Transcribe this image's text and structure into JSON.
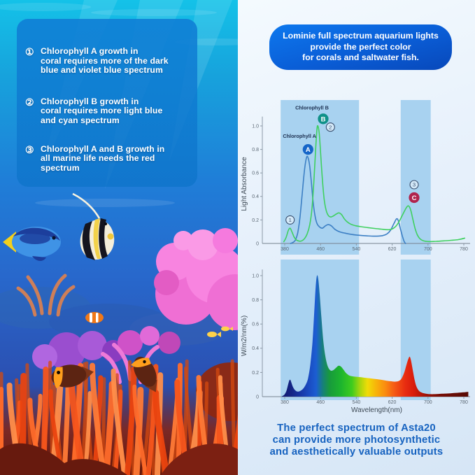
{
  "left_panel": {
    "points": [
      {
        "num": "①",
        "lines": [
          "Chlorophyll A growth in",
          "coral requires more of the dark",
          "blue and violet blue spectrum"
        ]
      },
      {
        "num": "②",
        "lines": [
          "Chlorophyll B growth in",
          "coral requires more light blue",
          "and cyan spectrum"
        ]
      },
      {
        "num": "③",
        "lines": [
          "Chlorophyll A and B growth in",
          "all marine life needs the red spectrum"
        ]
      }
    ]
  },
  "banner": {
    "lines": [
      "Lominie full spectrum aquarium lights",
      "provide the perfect color",
      "for corals and saltwater fish."
    ]
  },
  "footer": {
    "lines": [
      "The perfect spectrum of Asta20",
      "can provide more photosynthetic",
      "and aesthetically valuable outputs"
    ]
  },
  "colors": {
    "banner_blue": "#0b63d8",
    "footer_text": "#1763c0",
    "band": "#a8d2f0",
    "chl_a_line": "#3c7fc4",
    "chl_b_line": "#3fd05f",
    "badge_a": "#1565c8",
    "badge_b": "#0f9188",
    "badge_c": "#b0244e"
  },
  "chart_data": [
    {
      "type": "line",
      "title": "Chlorophyll absorbance",
      "ylabel": "Light Absorbance",
      "xlabel": "",
      "x_unit": "nm",
      "xticks": [
        380,
        460,
        540,
        620,
        700,
        780
      ],
      "ytick_labels": [
        "0",
        "0.2",
        "0.4",
        "0.6",
        "0.8",
        "1.0"
      ],
      "ylim": [
        0,
        1.08
      ],
      "xlim": [
        330,
        792
      ],
      "grid": false,
      "bands_nm": [
        [
          371,
          546
        ],
        [
          639,
          706
        ]
      ],
      "series": [
        {
          "name": "Chlorophyll A",
          "color": "#3c7fc4",
          "points": [
            [
              393,
              0
            ],
            [
              399,
              0.01
            ],
            [
              404,
              0.03
            ],
            [
              409,
              0.09
            ],
            [
              414,
              0.22
            ],
            [
              419,
              0.42
            ],
            [
              424,
              0.62
            ],
            [
              428,
              0.72
            ],
            [
              431,
              0.74
            ],
            [
              435,
              0.68
            ],
            [
              439,
              0.54
            ],
            [
              443,
              0.37
            ],
            [
              447,
              0.25
            ],
            [
              452,
              0.17
            ],
            [
              458,
              0.14
            ],
            [
              464,
              0.13
            ],
            [
              471,
              0.15
            ],
            [
              477,
              0.16
            ],
            [
              484,
              0.15
            ],
            [
              492,
              0.12
            ],
            [
              502,
              0.1
            ],
            [
              514,
              0.088
            ],
            [
              528,
              0.078
            ],
            [
              544,
              0.07
            ],
            [
              562,
              0.065
            ],
            [
              580,
              0.062
            ],
            [
              598,
              0.066
            ],
            [
              608,
              0.08
            ],
            [
              616,
              0.11
            ],
            [
              624,
              0.17
            ],
            [
              630,
              0.21
            ],
            [
              634,
              0.19
            ],
            [
              638,
              0.13
            ],
            [
              643,
              0.06
            ],
            [
              647,
              0.015
            ],
            [
              650,
              0
            ]
          ]
        },
        {
          "name": "Chlorophyll B",
          "color": "#3fd05f",
          "points": [
            [
              378,
              0.015
            ],
            [
              383,
              0.05
            ],
            [
              388,
              0.11
            ],
            [
              392,
              0.13
            ],
            [
              396,
              0.1
            ],
            [
              401,
              0.055
            ],
            [
              406,
              0.03
            ],
            [
              412,
              0.02
            ],
            [
              418,
              0.022
            ],
            [
              424,
              0.04
            ],
            [
              430,
              0.08
            ],
            [
              436,
              0.16
            ],
            [
              441,
              0.3
            ],
            [
              445,
              0.52
            ],
            [
              449,
              0.8
            ],
            [
              452,
              0.97
            ],
            [
              454,
              1.0
            ],
            [
              457,
              0.94
            ],
            [
              460,
              0.78
            ],
            [
              464,
              0.55
            ],
            [
              468,
              0.38
            ],
            [
              472,
              0.29
            ],
            [
              477,
              0.24
            ],
            [
              483,
              0.225
            ],
            [
              489,
              0.235
            ],
            [
              495,
              0.25
            ],
            [
              501,
              0.26
            ],
            [
              507,
              0.245
            ],
            [
              513,
              0.21
            ],
            [
              519,
              0.185
            ],
            [
              527,
              0.165
            ],
            [
              537,
              0.152
            ],
            [
              550,
              0.143
            ],
            [
              565,
              0.135
            ],
            [
              580,
              0.128
            ],
            [
              595,
              0.122
            ],
            [
              608,
              0.117
            ],
            [
              618,
              0.12
            ],
            [
              628,
              0.145
            ],
            [
              636,
              0.19
            ],
            [
              644,
              0.25
            ],
            [
              651,
              0.3
            ],
            [
              656,
              0.32
            ],
            [
              661,
              0.29
            ],
            [
              666,
              0.21
            ],
            [
              671,
              0.13
            ],
            [
              676,
              0.075
            ],
            [
              682,
              0.04
            ],
            [
              690,
              0.022
            ],
            [
              702,
              0.016
            ],
            [
              718,
              0.018
            ],
            [
              735,
              0.022
            ],
            [
              752,
              0.027
            ],
            [
              768,
              0.033
            ],
            [
              782,
              0.045
            ]
          ]
        }
      ],
      "annotations": {
        "series_labels": [
          {
            "text": "Chlorophyll A",
            "nm": 413,
            "val": 0.9
          },
          {
            "text": "Chlorophyll B",
            "nm": 441,
            "val": 1.14
          }
        ],
        "badges": [
          {
            "letter": "A",
            "nm": 432,
            "val": 0.8,
            "color": "#1565c8"
          },
          {
            "letter": "B",
            "nm": 466,
            "val": 1.06,
            "color": "#0f9188"
          },
          {
            "letter": "C",
            "nm": 669,
            "val": 0.39,
            "color": "#b0244e"
          }
        ],
        "ring_numbers": [
          {
            "text": "1",
            "nm": 392,
            "val": 0.2
          },
          {
            "text": "2",
            "nm": 482,
            "val": 0.99
          },
          {
            "text": "3",
            "nm": 669,
            "val": 0.5
          }
        ]
      }
    },
    {
      "type": "area",
      "title": "Asta20 output spectrum",
      "ylabel": "W/m2/nm(%)",
      "xlabel": "Wavelength(nm)",
      "x_unit": "nm",
      "xticks": [
        380,
        460,
        540,
        620,
        700,
        780
      ],
      "ytick_labels": [
        "0",
        "0.2",
        "0.4",
        "0.6",
        "0.8",
        "1.0"
      ],
      "ylim": [
        0,
        1.05
      ],
      "xlim": [
        330,
        792
      ],
      "grid": false,
      "bands_nm": [
        [
          371,
          546
        ],
        [
          639,
          706
        ]
      ],
      "series": [
        {
          "name": "Asta20 spectrum",
          "points": [
            [
              374,
              0.004
            ],
            [
              379,
              0.015
            ],
            [
              384,
              0.05
            ],
            [
              389,
              0.12
            ],
            [
              392,
              0.14
            ],
            [
              395,
              0.115
            ],
            [
              399,
              0.075
            ],
            [
              404,
              0.05
            ],
            [
              409,
              0.042
            ],
            [
              415,
              0.048
            ],
            [
              421,
              0.065
            ],
            [
              427,
              0.1
            ],
            [
              432,
              0.15
            ],
            [
              437,
              0.26
            ],
            [
              442,
              0.45
            ],
            [
              446,
              0.7
            ],
            [
              449,
              0.9
            ],
            [
              452,
              1.0
            ],
            [
              455,
              0.97
            ],
            [
              458,
              0.85
            ],
            [
              462,
              0.65
            ],
            [
              466,
              0.47
            ],
            [
              470,
              0.35
            ],
            [
              474,
              0.275
            ],
            [
              478,
              0.235
            ],
            [
              483,
              0.215
            ],
            [
              489,
              0.22
            ],
            [
              495,
              0.24
            ],
            [
              500,
              0.255
            ],
            [
              505,
              0.25
            ],
            [
              511,
              0.225
            ],
            [
              517,
              0.195
            ],
            [
              524,
              0.175
            ],
            [
              533,
              0.167
            ],
            [
              543,
              0.163
            ],
            [
              556,
              0.158
            ],
            [
              570,
              0.152
            ],
            [
              584,
              0.145
            ],
            [
              598,
              0.138
            ],
            [
              610,
              0.13
            ],
            [
              620,
              0.126
            ],
            [
              628,
              0.124
            ],
            [
              635,
              0.13
            ],
            [
              641,
              0.15
            ],
            [
              647,
              0.2
            ],
            [
              652,
              0.265
            ],
            [
              656,
              0.31
            ],
            [
              659,
              0.33
            ],
            [
              662,
              0.3
            ],
            [
              666,
              0.22
            ],
            [
              670,
              0.14
            ],
            [
              674,
              0.085
            ],
            [
              679,
              0.052
            ],
            [
              685,
              0.035
            ],
            [
              693,
              0.026
            ],
            [
              703,
              0.021
            ],
            [
              716,
              0.021
            ],
            [
              732,
              0.024
            ],
            [
              750,
              0.028
            ],
            [
              766,
              0.032
            ],
            [
              780,
              0.036
            ],
            [
              790,
              0.04
            ]
          ]
        }
      ],
      "gradient_stops": [
        {
          "nm": 374,
          "color": "#10186e"
        },
        {
          "nm": 395,
          "color": "#142585"
        },
        {
          "nm": 415,
          "color": "#1736a5"
        },
        {
          "nm": 435,
          "color": "#1a4cc2"
        },
        {
          "nm": 450,
          "color": "#1c5ed2"
        },
        {
          "nm": 465,
          "color": "#17807a"
        },
        {
          "nm": 480,
          "color": "#189a3c"
        },
        {
          "nm": 505,
          "color": "#1cb42e"
        },
        {
          "nm": 530,
          "color": "#3ecc1e"
        },
        {
          "nm": 548,
          "color": "#a6d50e"
        },
        {
          "nm": 565,
          "color": "#f0dc08"
        },
        {
          "nm": 585,
          "color": "#f8b20a"
        },
        {
          "nm": 605,
          "color": "#fa8c10"
        },
        {
          "nm": 625,
          "color": "#f55a14"
        },
        {
          "nm": 650,
          "color": "#e82c10"
        },
        {
          "nm": 668,
          "color": "#d81c0c"
        },
        {
          "nm": 690,
          "color": "#a81408"
        },
        {
          "nm": 720,
          "color": "#7c0e06"
        },
        {
          "nm": 790,
          "color": "#560a04"
        }
      ]
    }
  ]
}
